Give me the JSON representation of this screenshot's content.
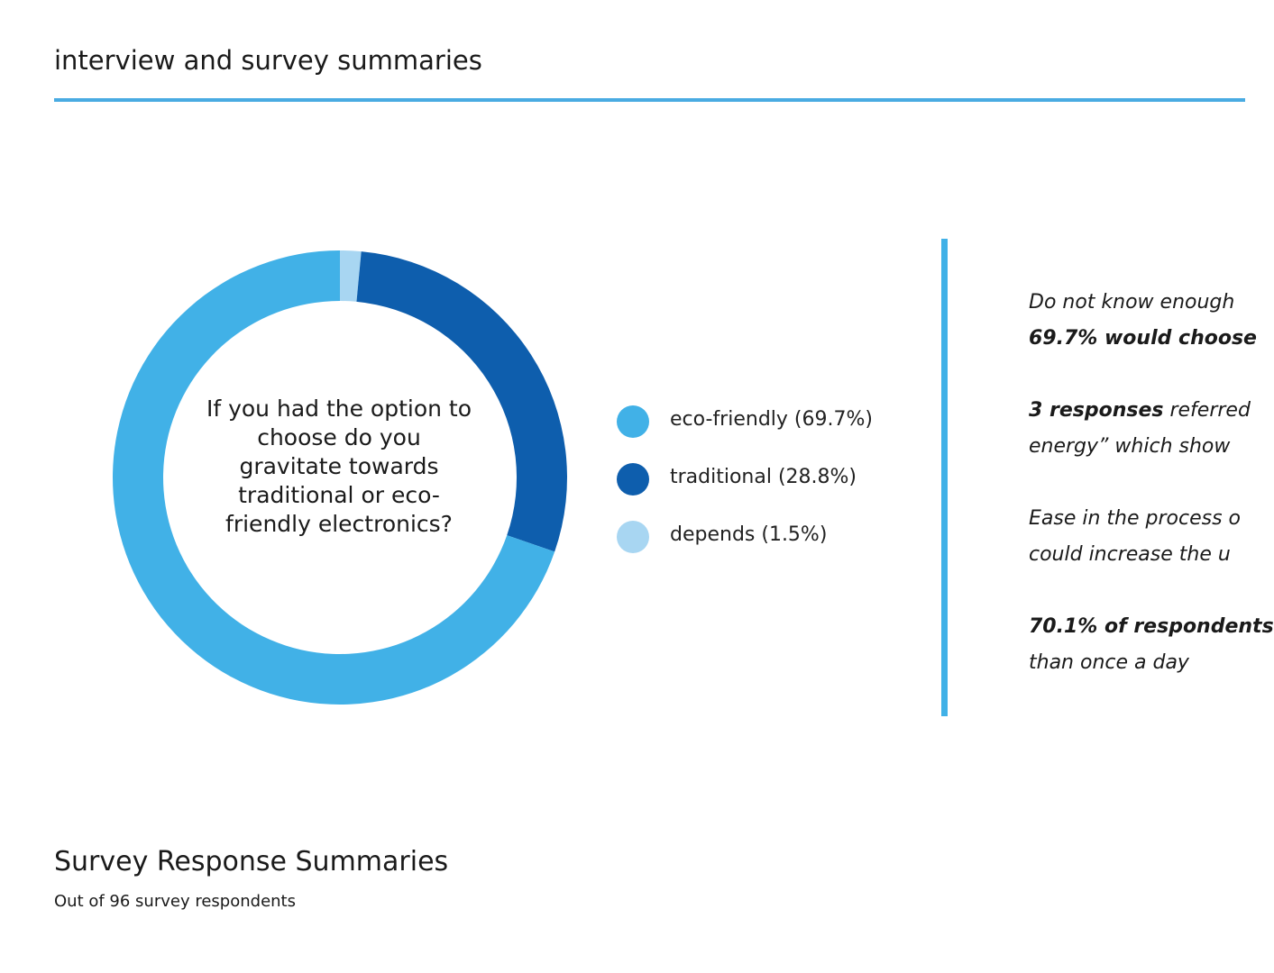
{
  "header": {
    "title": "interview and survey summaries"
  },
  "chart_data": {
    "type": "pie",
    "title": "If you had the option to choose do you gravitate towards traditional or eco-friendly electronics?",
    "series": [
      {
        "name": "depends (1.5%)",
        "value": 1.5,
        "color": "#a8d6f2"
      },
      {
        "name": "traditional (28.8%)",
        "value": 28.8,
        "color": "#0e5ead"
      },
      {
        "name": "eco-friendly (69.7%)",
        "value": 69.7,
        "color": "#41b1e7"
      }
    ],
    "legend_order": [
      {
        "label": "eco-friendly (69.7%)",
        "color": "#41b1e7"
      },
      {
        "label": "traditional (28.8%)",
        "color": "#0e5ead"
      },
      {
        "label": "depends (1.5%)",
        "color": "#a8d6f2"
      }
    ],
    "legend_position": "right"
  },
  "insights": [
    {
      "lines": [
        [
          {
            "text": "Do not know enough",
            "bold": false
          }
        ],
        [
          {
            "text": "69.7% would choose",
            "bold": true
          }
        ]
      ]
    },
    {
      "lines": [
        [
          {
            "text": "3 responses",
            "bold": true
          },
          {
            "text": " referred",
            "bold": false
          }
        ],
        [
          {
            "text": "energy” which show",
            "bold": false
          }
        ]
      ]
    },
    {
      "lines": [
        [
          {
            "text": "Ease in the process o",
            "bold": false
          }
        ],
        [
          {
            "text": "could increase the u",
            "bold": false
          }
        ]
      ]
    },
    {
      "lines": [
        [
          {
            "text": "70.1% of respondents",
            "bold": true
          }
        ],
        [
          {
            "text": "than once a day",
            "bold": false
          }
        ]
      ]
    }
  ],
  "footer": {
    "title": "Survey Response Summaries",
    "subtitle": "Out of 96 survey respondents"
  },
  "colors": {
    "accent": "#41b1e7",
    "rule": "#49abe2"
  }
}
